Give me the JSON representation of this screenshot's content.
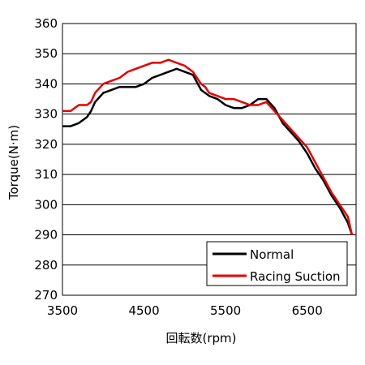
{
  "chart_data": {
    "type": "line",
    "xlabel": "回転数(rpm)",
    "ylabel": "Torque(N·m)",
    "xlim": [
      3500,
      7100
    ],
    "ylim": [
      270,
      360
    ],
    "x_ticks": [
      3500,
      4500,
      5500,
      6500
    ],
    "y_ticks": [
      270,
      280,
      290,
      300,
      310,
      320,
      330,
      340,
      350,
      360
    ],
    "x_tick_labels": [
      "3500",
      "4500",
      "5500",
      "6500"
    ],
    "y_tick_labels": [
      "270",
      "280",
      "290",
      "300",
      "310",
      "320",
      "330",
      "340",
      "350",
      "360"
    ],
    "grid": "horizontal",
    "legend_position": "bottom-right",
    "series": [
      {
        "name": "Normal",
        "color": "#000000",
        "x": [
          3500,
          3600,
          3700,
          3800,
          3850,
          3900,
          4000,
          4100,
          4200,
          4300,
          4400,
          4500,
          4600,
          4700,
          4800,
          4900,
          5000,
          5100,
          5200,
          5250,
          5300,
          5400,
          5500,
          5600,
          5700,
          5800,
          5900,
          6000,
          6100,
          6200,
          6300,
          6400,
          6500,
          6600,
          6700,
          6800,
          6900,
          7000,
          7050
        ],
        "values": [
          326,
          326,
          327,
          329,
          331,
          334,
          337,
          338,
          339,
          339,
          339,
          340,
          342,
          343,
          344,
          345,
          344,
          343,
          338,
          337,
          336,
          335,
          333,
          332,
          332,
          333,
          335,
          335,
          332,
          327,
          324,
          321,
          317,
          312,
          308,
          303,
          299,
          294,
          290
        ]
      },
      {
        "name": "Racing Suction",
        "color": "#e60000",
        "x": [
          3500,
          3600,
          3700,
          3800,
          3850,
          3900,
          4000,
          4100,
          4200,
          4300,
          4400,
          4500,
          4600,
          4700,
          4800,
          4900,
          5000,
          5100,
          5200,
          5250,
          5300,
          5400,
          5500,
          5600,
          5700,
          5800,
          5900,
          6000,
          6100,
          6200,
          6300,
          6400,
          6500,
          6600,
          6700,
          6800,
          6900,
          7000,
          7050
        ],
        "values": [
          331,
          331,
          333,
          333,
          334,
          337,
          340,
          341,
          342,
          344,
          345,
          346,
          347,
          347,
          348,
          347,
          346,
          344,
          340,
          339,
          337,
          336,
          335,
          335,
          334,
          333,
          333,
          334,
          331,
          328,
          325,
          322,
          319,
          314,
          309,
          304,
          300,
          296,
          290
        ]
      }
    ]
  }
}
